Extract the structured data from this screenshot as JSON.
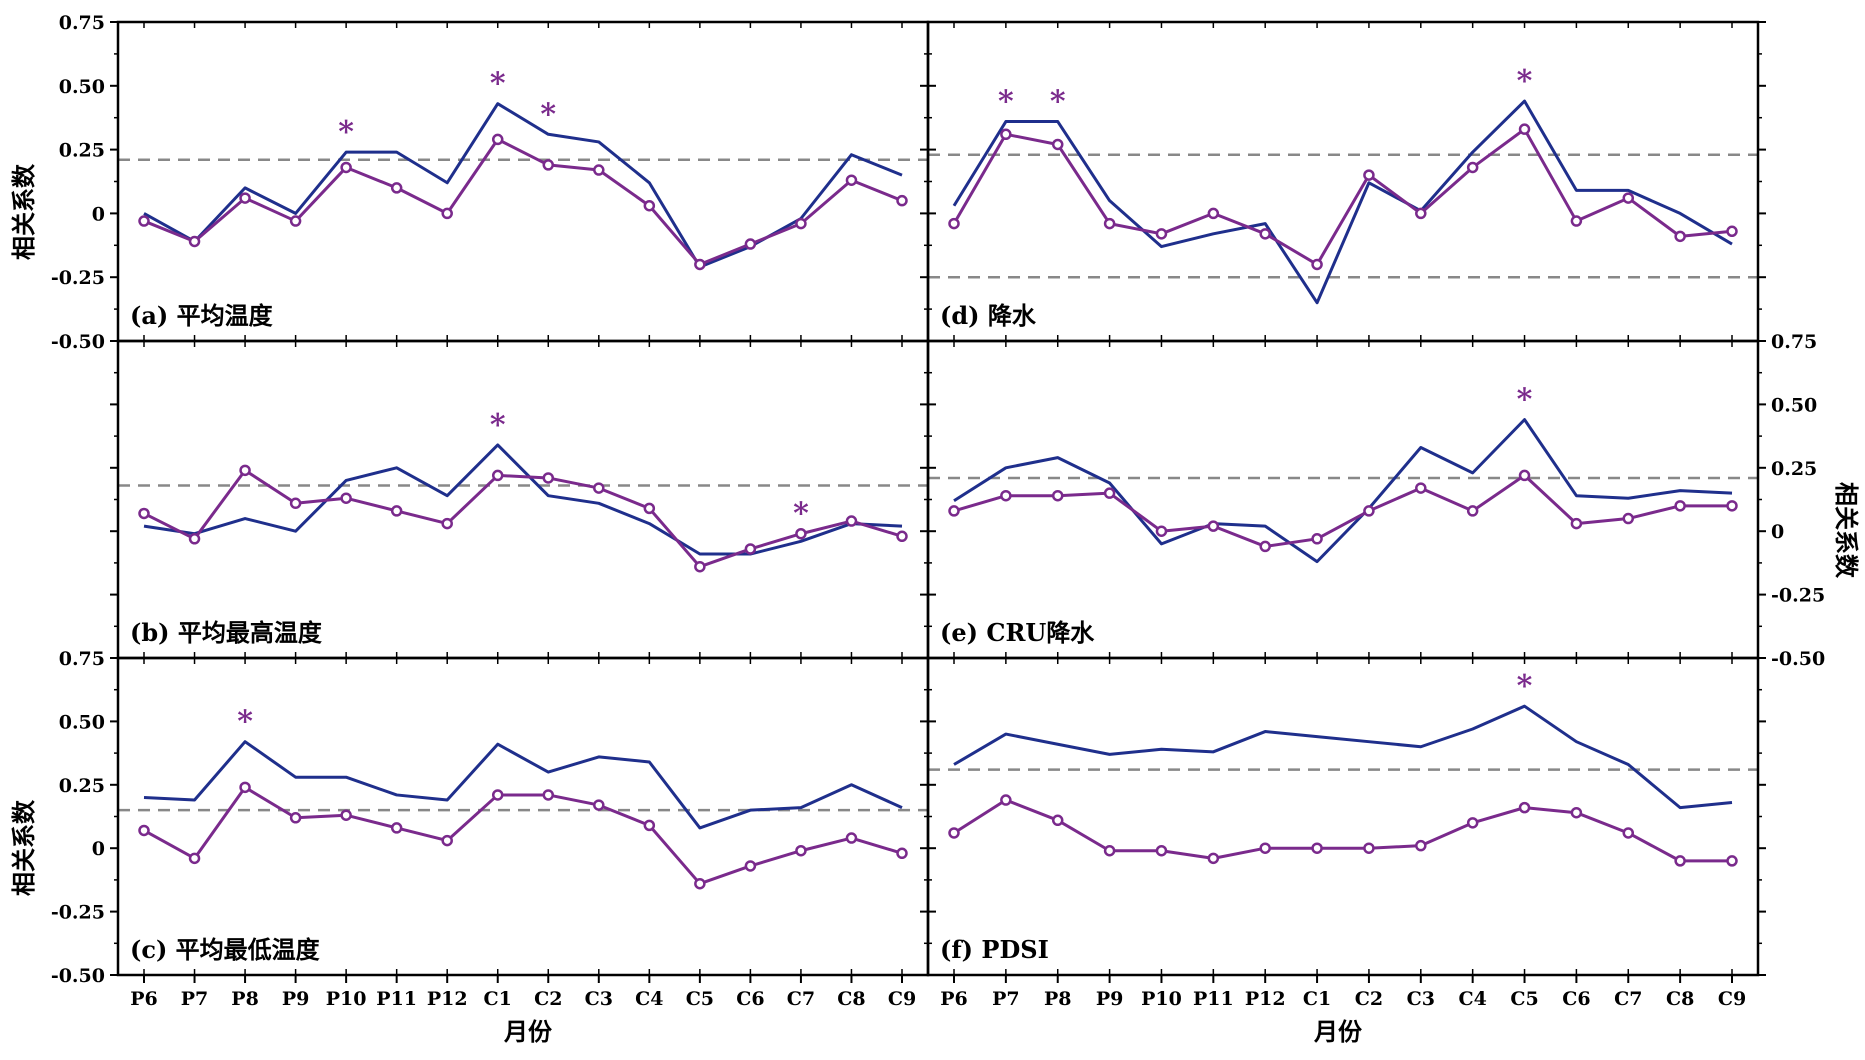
{
  "chart_data": {
    "type": "line",
    "x_categories": [
      "P6",
      "P7",
      "P8",
      "P9",
      "P10",
      "P11",
      "P12",
      "C1",
      "C2",
      "C3",
      "C4",
      "C5",
      "C6",
      "C7",
      "C8",
      "C9"
    ],
    "xlabel": "月份",
    "ylabel": "相关系数",
    "ylim": [
      -0.5,
      0.75
    ],
    "yticks": [
      0.75,
      0.5,
      0.25,
      0,
      -0.25,
      -0.5
    ],
    "ytick_labels": [
      "0.75",
      "0.50",
      "0.25",
      "0",
      "-0.25",
      "-0.50"
    ],
    "series_colors": {
      "line_blue": "#1f2f8c",
      "line_purple": "#7a2a8c",
      "threshold": "#888888",
      "star": "#7a2a8c"
    },
    "panels": [
      {
        "label": "(a) 平均温度",
        "series": [
          {
            "name": "blue",
            "values": [
              0.0,
              -0.11,
              0.1,
              0.0,
              0.24,
              0.24,
              0.12,
              0.43,
              0.31,
              0.28,
              0.12,
              -0.21,
              -0.13,
              -0.02,
              0.23,
              0.15
            ]
          },
          {
            "name": "purple",
            "values": [
              -0.03,
              -0.11,
              0.06,
              -0.03,
              0.18,
              0.1,
              0.0,
              0.29,
              0.19,
              0.17,
              0.03,
              -0.2,
              -0.12,
              -0.04,
              0.13,
              0.05
            ]
          }
        ],
        "thresholds": [
          0.21
        ],
        "stars": [
          "P10",
          "C1",
          "C2"
        ]
      },
      {
        "label": "(b) 平均最高温度",
        "series": [
          {
            "name": "blue",
            "values": [
              0.02,
              -0.01,
              0.05,
              0.0,
              0.2,
              0.25,
              0.14,
              0.34,
              0.14,
              0.11,
              0.03,
              -0.09,
              -0.09,
              -0.04,
              0.03,
              0.02
            ]
          },
          {
            "name": "purple",
            "values": [
              0.07,
              -0.03,
              0.24,
              0.11,
              0.13,
              0.08,
              0.03,
              0.22,
              0.21,
              0.17,
              0.09,
              -0.14,
              -0.07,
              -0.01,
              0.04,
              -0.02
            ]
          }
        ],
        "thresholds": [
          0.18
        ],
        "stars": [
          "C1",
          "C7"
        ]
      },
      {
        "label": "(c) 平均最低温度",
        "series": [
          {
            "name": "blue",
            "values": [
              0.2,
              0.19,
              0.42,
              0.28,
              0.28,
              0.21,
              0.19,
              0.41,
              0.3,
              0.36,
              0.34,
              0.08,
              0.15,
              0.16,
              0.25,
              0.16
            ]
          },
          {
            "name": "purple",
            "values": [
              0.07,
              -0.04,
              0.24,
              0.12,
              0.13,
              0.08,
              0.03,
              0.21,
              0.21,
              0.17,
              0.09,
              -0.14,
              -0.07,
              -0.01,
              0.04,
              -0.02
            ]
          }
        ],
        "thresholds": [
          0.15
        ],
        "stars": [
          "P8"
        ]
      },
      {
        "label": "(d) 降水",
        "series": [
          {
            "name": "blue",
            "values": [
              0.03,
              0.36,
              0.36,
              0.05,
              -0.13,
              -0.08,
              -0.04,
              -0.35,
              0.12,
              0.01,
              0.24,
              0.44,
              0.09,
              0.09,
              0.0,
              -0.12
            ]
          },
          {
            "name": "purple",
            "values": [
              -0.04,
              0.31,
              0.27,
              -0.04,
              -0.08,
              0.0,
              -0.08,
              -0.2,
              0.15,
              0.0,
              0.18,
              0.33,
              -0.03,
              0.06,
              -0.09,
              -0.07
            ]
          }
        ],
        "thresholds": [
          0.23,
          -0.25
        ],
        "stars": [
          "P7",
          "P8",
          "C5"
        ]
      },
      {
        "label": "(e) CRU降水",
        "series": [
          {
            "name": "blue",
            "values": [
              0.12,
              0.25,
              0.29,
              0.19,
              -0.05,
              0.03,
              0.02,
              -0.12,
              0.09,
              0.33,
              0.23,
              0.44,
              0.14,
              0.13,
              0.16,
              0.15
            ]
          },
          {
            "name": "purple",
            "values": [
              0.08,
              0.14,
              0.14,
              0.15,
              0.0,
              0.02,
              -0.06,
              -0.03,
              0.08,
              0.17,
              0.08,
              0.22,
              0.03,
              0.05,
              0.1,
              0.1
            ]
          }
        ],
        "thresholds": [
          0.21
        ],
        "stars": [
          "C5"
        ]
      },
      {
        "label": "(f) PDSI",
        "series": [
          {
            "name": "blue",
            "values": [
              0.33,
              0.45,
              0.41,
              0.37,
              0.39,
              0.38,
              0.46,
              0.44,
              0.42,
              0.4,
              0.47,
              0.56,
              0.42,
              0.33,
              0.16,
              0.18
            ]
          },
          {
            "name": "purple",
            "values": [
              0.06,
              0.19,
              0.11,
              -0.01,
              -0.01,
              -0.04,
              0.0,
              0.0,
              0.0,
              0.01,
              0.1,
              0.16,
              0.14,
              0.06,
              -0.05,
              -0.05
            ]
          }
        ],
        "thresholds": [
          0.31
        ],
        "stars": [
          "C5"
        ]
      }
    ]
  }
}
